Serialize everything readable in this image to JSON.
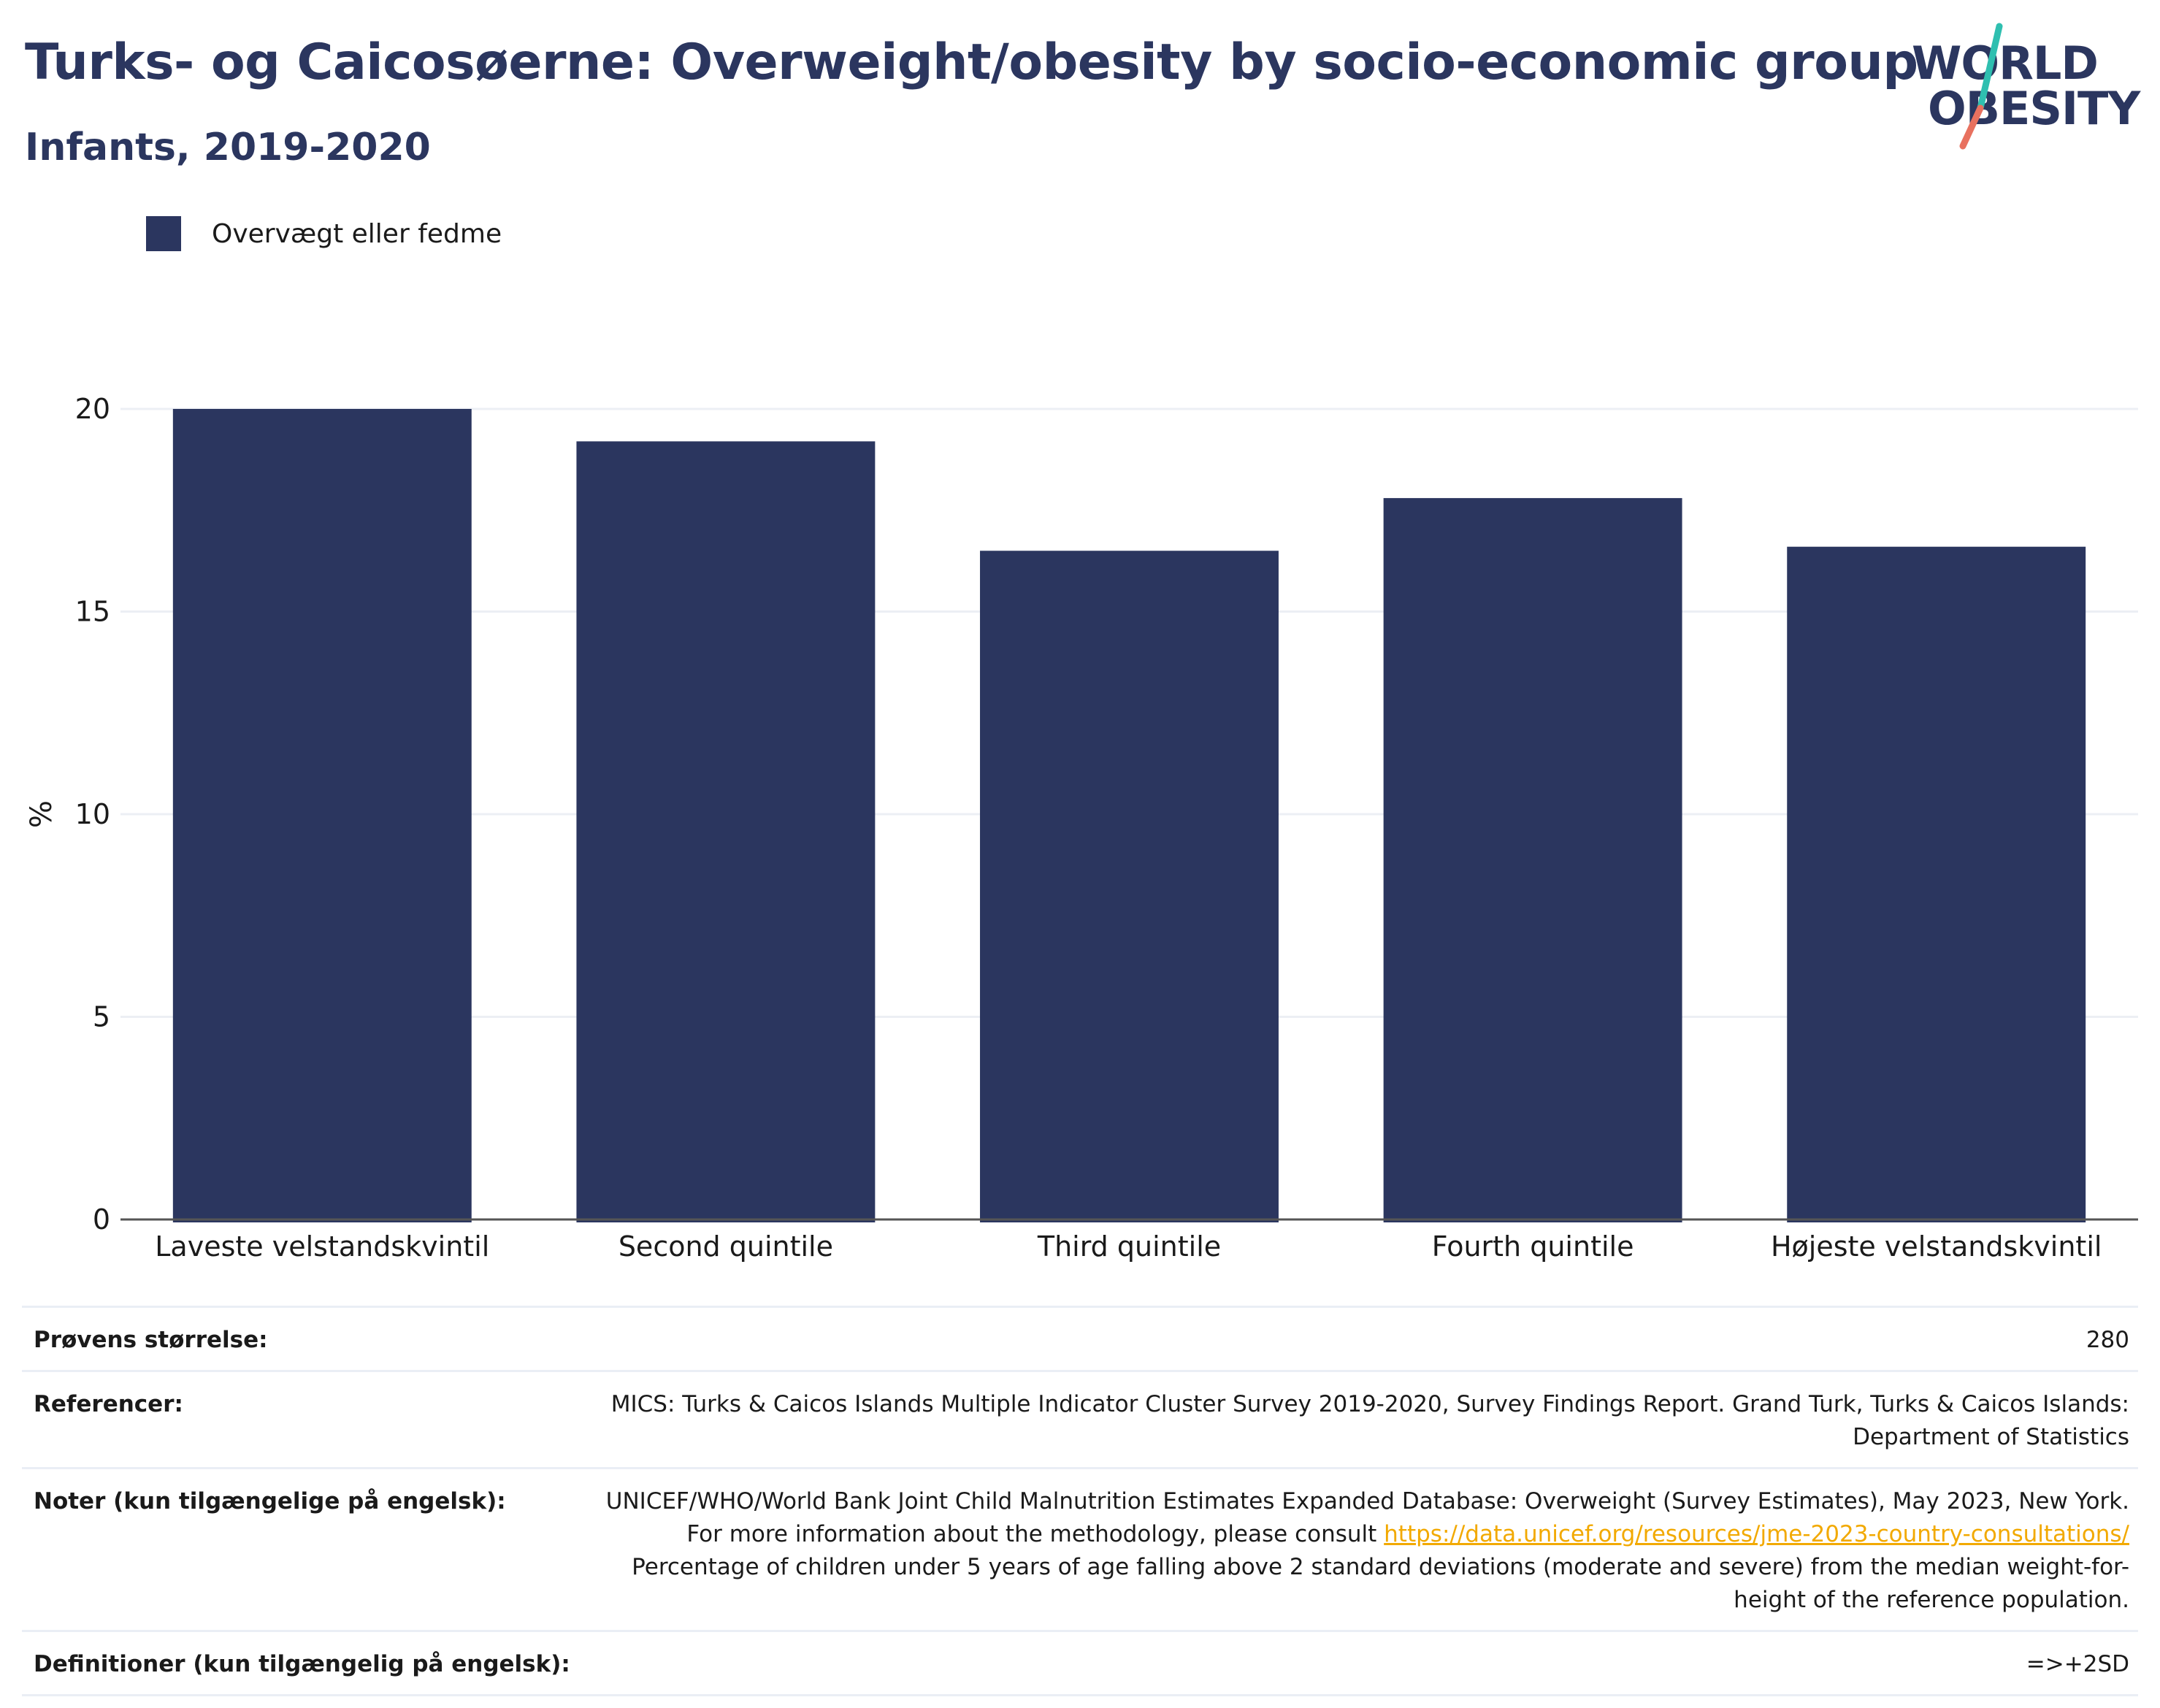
{
  "header": {
    "title": "Turks- og Caicosøerne: Overweight/obesity by socio-economic group",
    "subtitle": "Infants, 2019-2020"
  },
  "logo": {
    "line1": "WORLD",
    "line2": "OBESITY",
    "colors": {
      "text": "#2b365f",
      "slash_top": "#2fbfb0",
      "slash_bottom": "#e8715f"
    }
  },
  "legend": {
    "label": "Overvægt eller fedme",
    "color": "#2b365f"
  },
  "chart_data": {
    "type": "bar",
    "categories": [
      "Laveste velstandskvintil",
      "Second quintile",
      "Third quintile",
      "Fourth quintile",
      "Højeste velstandskvintil"
    ],
    "series": [
      {
        "name": "Overvægt eller fedme",
        "values": [
          20.0,
          19.2,
          16.5,
          17.8,
          16.6
        ],
        "color": "#2b365f"
      }
    ],
    "ylabel": "%",
    "ylim": [
      0,
      20
    ],
    "yticks": [
      0,
      5,
      10,
      15,
      20
    ],
    "grid": true,
    "legend_position": "top-left"
  },
  "info": {
    "sample_size": {
      "label": "Prøvens størrelse:",
      "value": "280"
    },
    "references": {
      "label": "Referencer:",
      "value": "MICS: Turks & Caicos Islands Multiple Indicator Cluster Survey 2019-2020, Survey Findings Report. Grand Turk, Turks & Caicos Islands: Department of Statistics"
    },
    "notes": {
      "label": "Noter (kun tilgængelige på engelsk):",
      "text_before": "UNICEF/WHO/World Bank Joint Child Malnutrition Estimates Expanded Database: Overweight (Survey Estimates), May 2023, New York. For more information about the methodology, please consult ",
      "link": "https://data.unicef.org/resources/jme-2023-country-consultations/",
      "text_after": " Percentage of children under 5 years of age falling above 2 standard deviations (moderate and severe) from the median weight-for-height of the reference population."
    },
    "definitions": {
      "label": "Definitioner (kun tilgængelig på engelsk):",
      "value": "=>+2SD"
    }
  }
}
